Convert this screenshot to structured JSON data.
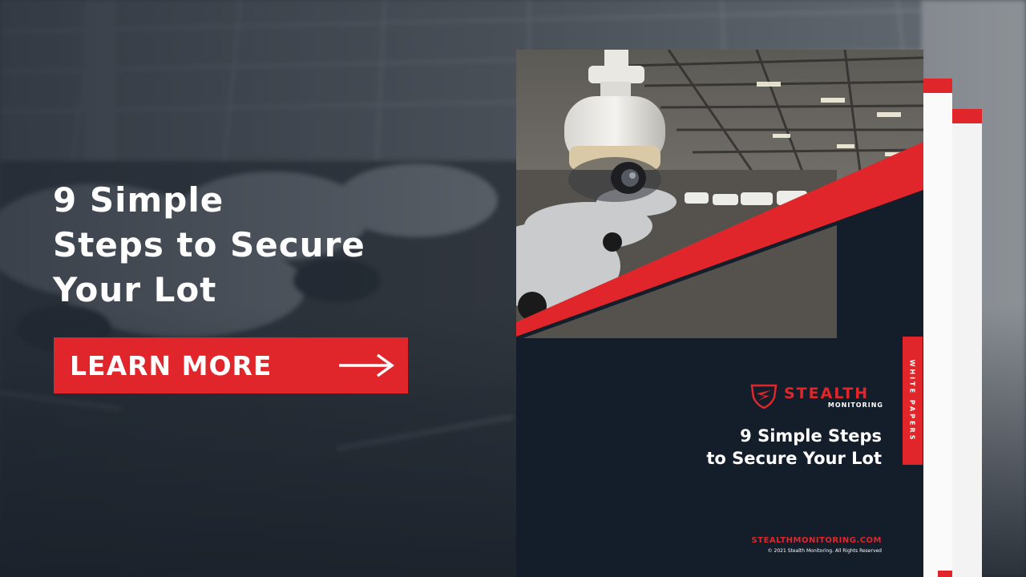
{
  "headline": {
    "lines": [
      "9 Simple",
      "Steps to Secure",
      "Your Lot"
    ]
  },
  "cta": {
    "label": "LEARN MORE",
    "icon": "arrow-right-icon"
  },
  "booklet": {
    "brand_name": "STEALTH",
    "brand_sub": "MONITORING",
    "brand_icon": "shield-logo-icon",
    "title_lines": [
      "9 Simple Steps",
      "to Secure Your Lot"
    ],
    "side_tab": "WHITE PAPERS",
    "website": "STEALTHMONITORING.COM",
    "copyright": "© 2021 Stealth Monitoring. All Rights Reserved"
  },
  "colors": {
    "accent": "#e0262a",
    "navy": "#141e2b",
    "overlay": "#1f2630"
  }
}
